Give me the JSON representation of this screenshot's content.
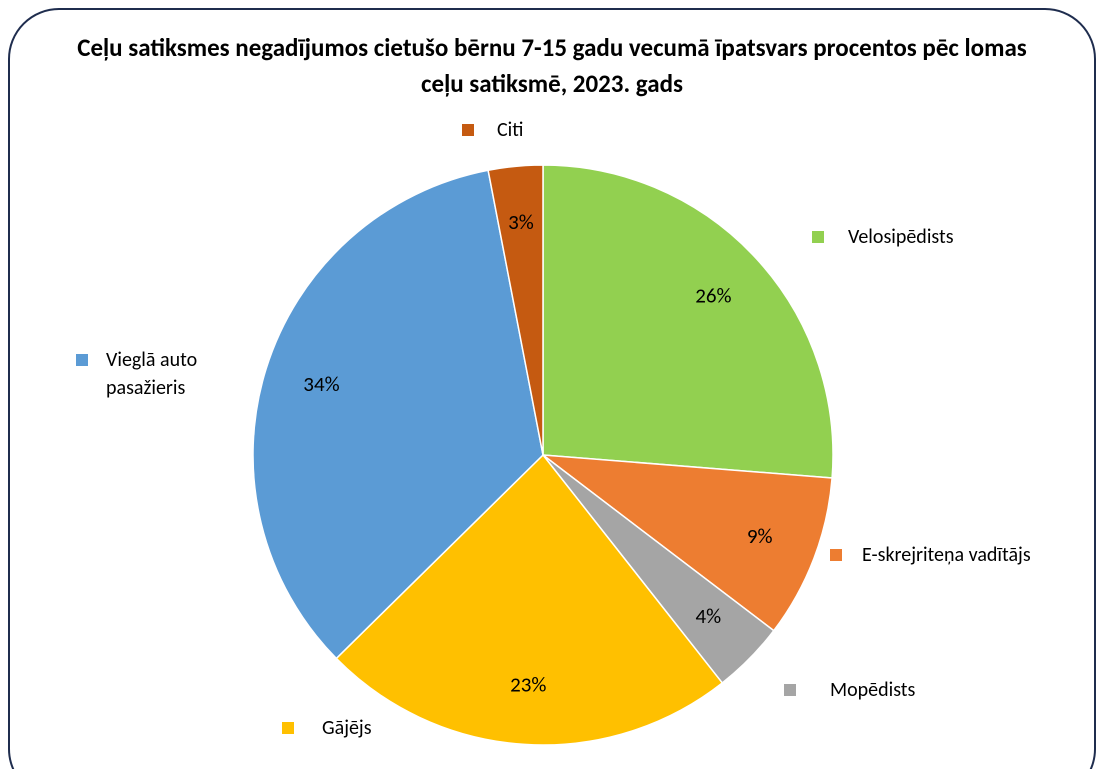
{
  "chart_data": {
    "type": "pie",
    "title": "Ceļu satiksmes negadījumos cietušo bērnu 7-15 gadu vecumā īpatsvars procentos pēc lomas ceļu satiksmē, 2023. gads",
    "categories": [
      "Velosipēdists",
      "E-skrejriteņa vadītājs",
      "Mopēdists",
      "Gājējs",
      "Vieglā auto pasažieris",
      "Citi"
    ],
    "values": [
      26,
      9,
      4,
      23,
      34,
      3
    ],
    "value_labels": [
      "26%",
      "9%",
      "4%",
      "23%",
      "34%",
      "3%"
    ],
    "colors": [
      "#92d050",
      "#ed7d31",
      "#a5a5a5",
      "#ffc000",
      "#5b9bd5",
      "#c55a11"
    ]
  }
}
